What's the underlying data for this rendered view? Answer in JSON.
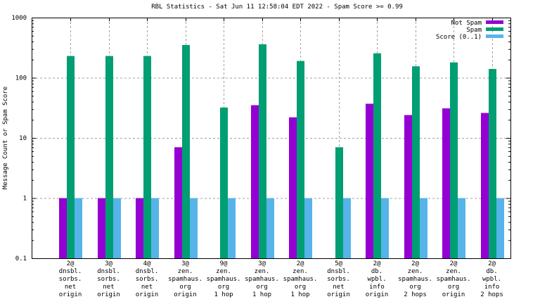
{
  "chart_data": {
    "type": "bar",
    "title": "RBL Statistics - Sat Jun 11 12:58:04 EDT 2022 - Spam Score >= 0.99",
    "xlabel": "",
    "ylabel": "Message Count or Spam Score",
    "yscale": "log",
    "ylim": [
      0.1,
      1000
    ],
    "yticks": [
      "0.1",
      "1",
      "10",
      "100",
      "1000"
    ],
    "grid": true,
    "legend_position": "top-right",
    "categories": [
      [
        "2@",
        "dnsbl.",
        "sorbs.",
        "net",
        "origin"
      ],
      [
        "3@",
        "dnsbl.",
        "sorbs.",
        "net",
        "origin"
      ],
      [
        "4@",
        "dnsbl.",
        "sorbs.",
        "net",
        "origin"
      ],
      [
        "3@",
        "zen.",
        "spamhaus.",
        "org",
        "origin"
      ],
      [
        "9@",
        "zen.",
        "spamhaus.",
        "org",
        "1 hop"
      ],
      [
        "3@",
        "zen.",
        "spamhaus.",
        "org",
        "1 hop"
      ],
      [
        "2@",
        "zen.",
        "spamhaus.",
        "org",
        "1 hop"
      ],
      [
        "5@",
        "dnsbl.",
        "sorbs.",
        "net",
        "origin"
      ],
      [
        "2@",
        "db.",
        "wpbl.",
        "info",
        "origin"
      ],
      [
        "2@",
        "zen.",
        "spamhaus.",
        "org",
        "2 hops"
      ],
      [
        "2@",
        "zen.",
        "spamhaus.",
        "org",
        "origin"
      ],
      [
        "2@",
        "db.",
        "wpbl.",
        "info",
        "2 hops"
      ]
    ],
    "series": [
      {
        "name": "Not Spam",
        "color": "#9400d3",
        "values": [
          1,
          1,
          1,
          7,
          0,
          35,
          22,
          0,
          37,
          24,
          31,
          26
        ]
      },
      {
        "name": "Spam",
        "color": "#009e73",
        "values": [
          230,
          230,
          230,
          350,
          32,
          360,
          190,
          7,
          255,
          155,
          180,
          140
        ]
      },
      {
        "name": "Score (0..1)",
        "color": "#56b4e9",
        "values": [
          1,
          1,
          1,
          1,
          1,
          1,
          1,
          1,
          1,
          1,
          1,
          1
        ]
      }
    ]
  }
}
